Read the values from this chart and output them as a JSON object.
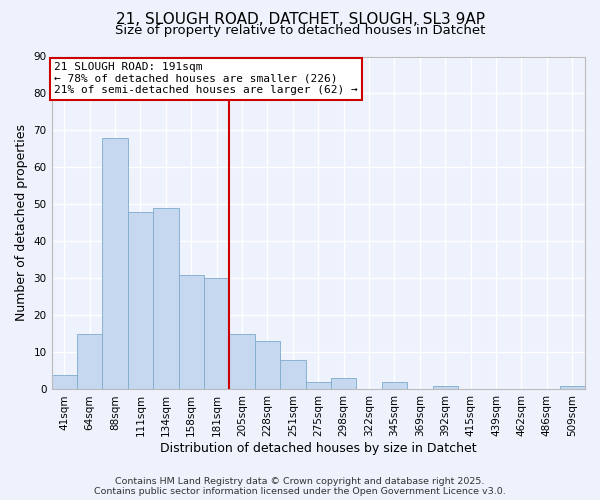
{
  "title": "21, SLOUGH ROAD, DATCHET, SLOUGH, SL3 9AP",
  "subtitle": "Size of property relative to detached houses in Datchet",
  "xlabel": "Distribution of detached houses by size in Datchet",
  "ylabel": "Number of detached properties",
  "bar_labels": [
    "41sqm",
    "64sqm",
    "88sqm",
    "111sqm",
    "134sqm",
    "158sqm",
    "181sqm",
    "205sqm",
    "228sqm",
    "251sqm",
    "275sqm",
    "298sqm",
    "322sqm",
    "345sqm",
    "369sqm",
    "392sqm",
    "415sqm",
    "439sqm",
    "462sqm",
    "486sqm",
    "509sqm"
  ],
  "bar_values": [
    4,
    15,
    68,
    48,
    49,
    31,
    30,
    15,
    13,
    8,
    2,
    3,
    0,
    2,
    0,
    1,
    0,
    0,
    0,
    0,
    1
  ],
  "bar_color": "#c5d8f0",
  "bar_edge_color": "#7faacc",
  "ylim": [
    0,
    90
  ],
  "yticks": [
    0,
    10,
    20,
    30,
    40,
    50,
    60,
    70,
    80,
    90
  ],
  "vline_x_idx": 7,
  "vline_color": "#cc0000",
  "annotation_title": "21 SLOUGH ROAD: 191sqm",
  "annotation_line1": "← 78% of detached houses are smaller (226)",
  "annotation_line2": "21% of semi-detached houses are larger (62) →",
  "annotation_box_color": "#ffffff",
  "annotation_box_edge": "#cc0000",
  "background_color": "#eef2fc",
  "grid_color": "#ffffff",
  "footer1": "Contains HM Land Registry data © Crown copyright and database right 2025.",
  "footer2": "Contains public sector information licensed under the Open Government Licence v3.0.",
  "title_fontsize": 11,
  "subtitle_fontsize": 9.5,
  "axis_label_fontsize": 9,
  "tick_fontsize": 7.5,
  "annotation_fontsize": 8,
  "footer_fontsize": 6.8
}
